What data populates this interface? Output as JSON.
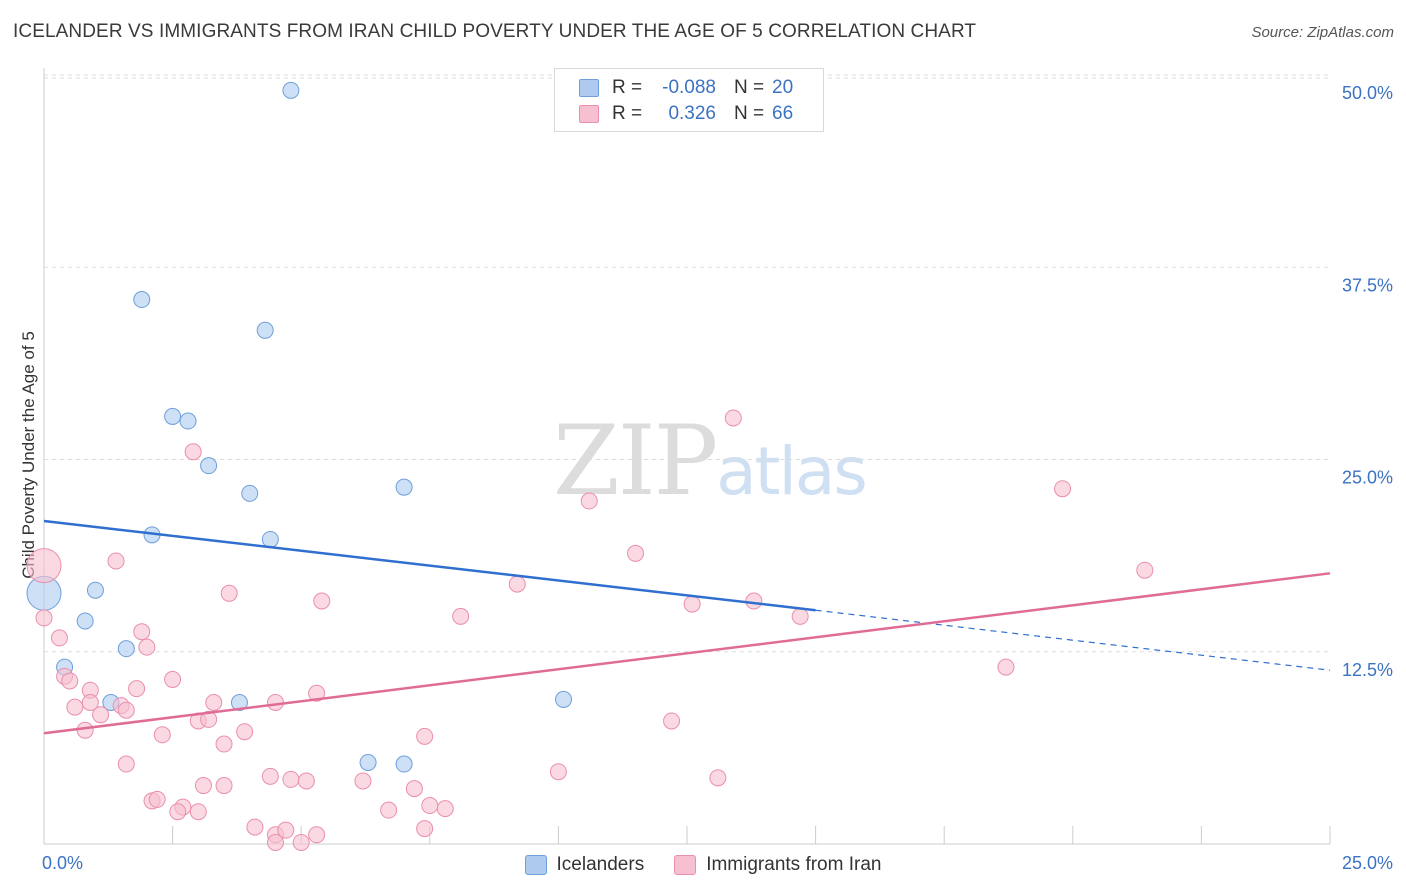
{
  "title": "ICELANDER VS IMMIGRANTS FROM IRAN CHILD POVERTY UNDER THE AGE OF 5 CORRELATION CHART",
  "source": "Source: ZipAtlas.com",
  "watermark": {
    "zip": "ZIP",
    "atlas": "atlas"
  },
  "colors": {
    "blue_fill": "#aecbef",
    "blue_stroke": "#6e9fdb",
    "blue_line": "#2f6fcf",
    "pink_fill": "#f6c0d1",
    "pink_stroke": "#ea8fac",
    "pink_line": "#e06c96",
    "tick_label": "#3b73c2",
    "grid": "#dddddd"
  },
  "legend": {
    "rows": [
      {
        "r_label": "R =",
        "r_value": "-0.088",
        "n_label": "N =",
        "n_value": "20"
      },
      {
        "r_label": "R =",
        "r_value": "0.326",
        "n_label": "N =",
        "n_value": "66"
      }
    ]
  },
  "bottom_legend": [
    "Icelanders",
    "Immigrants from Iran"
  ],
  "chart_data": {
    "type": "scatter",
    "xlabel": "",
    "ylabel": "Child Poverty Under the Age of 5",
    "xlim": [
      0,
      25
    ],
    "ylim": [
      0,
      50
    ],
    "x_tick_labels": [
      "0.0%",
      "25.0%"
    ],
    "y_tick_labels": [
      "12.5%",
      "25.0%",
      "37.5%",
      "50.0%"
    ],
    "y_ticks": [
      12.5,
      25.0,
      37.5,
      50.0
    ],
    "grid": true,
    "legend_position": "top-center",
    "series": [
      {
        "name": "Icelanders",
        "color": "blue",
        "trend": {
          "x0": 0,
          "y0": 21.0,
          "x1": 15.0,
          "y1": 15.2,
          "dashed_to_x": 25,
          "dashed_to_y": 11.3
        },
        "points": [
          [
            4.8,
            49.0
          ],
          [
            1.9,
            35.4
          ],
          [
            4.3,
            33.4
          ],
          [
            2.5,
            27.8
          ],
          [
            2.8,
            27.5
          ],
          [
            3.2,
            24.6
          ],
          [
            4.0,
            22.8
          ],
          [
            7.0,
            23.2
          ],
          [
            2.1,
            20.1
          ],
          [
            4.4,
            19.8
          ],
          [
            0.0,
            16.3,
            "large"
          ],
          [
            1.0,
            16.5
          ],
          [
            0.8,
            14.5
          ],
          [
            1.6,
            12.7
          ],
          [
            0.4,
            11.5
          ],
          [
            1.3,
            9.2
          ],
          [
            3.8,
            9.2
          ],
          [
            10.1,
            9.4
          ],
          [
            6.3,
            5.3
          ],
          [
            7.0,
            5.2
          ]
        ]
      },
      {
        "name": "Immigrants from Iran",
        "color": "pink",
        "trend": {
          "x0": 0,
          "y0": 7.2,
          "x1": 25,
          "y1": 17.6
        },
        "points": [
          [
            13.4,
            27.7
          ],
          [
            2.9,
            25.5
          ],
          [
            10.6,
            22.3
          ],
          [
            19.8,
            23.1
          ],
          [
            0.0,
            18.1,
            "large"
          ],
          [
            1.4,
            18.4
          ],
          [
            11.5,
            18.9
          ],
          [
            21.4,
            17.8
          ],
          [
            9.2,
            16.9
          ],
          [
            3.6,
            16.3
          ],
          [
            5.4,
            15.8
          ],
          [
            12.6,
            15.6
          ],
          [
            13.8,
            15.8
          ],
          [
            8.1,
            14.8
          ],
          [
            14.7,
            14.8
          ],
          [
            0.0,
            14.7
          ],
          [
            0.3,
            13.4
          ],
          [
            1.9,
            13.8
          ],
          [
            2.0,
            12.8
          ],
          [
            18.7,
            11.5
          ],
          [
            0.4,
            10.9
          ],
          [
            0.5,
            10.6
          ],
          [
            2.5,
            10.7
          ],
          [
            0.9,
            10.0
          ],
          [
            1.8,
            10.1
          ],
          [
            5.3,
            9.8
          ],
          [
            0.9,
            9.2
          ],
          [
            1.5,
            9.0
          ],
          [
            3.3,
            9.2
          ],
          [
            4.5,
            9.2
          ],
          [
            0.6,
            8.9
          ],
          [
            1.1,
            8.4
          ],
          [
            1.6,
            8.7
          ],
          [
            3.0,
            8.0
          ],
          [
            3.2,
            8.1
          ],
          [
            12.2,
            8.0
          ],
          [
            0.8,
            7.4
          ],
          [
            2.3,
            7.1
          ],
          [
            3.9,
            7.3
          ],
          [
            7.4,
            7.0
          ],
          [
            3.5,
            6.5
          ],
          [
            1.6,
            5.2
          ],
          [
            10.0,
            4.7
          ],
          [
            13.1,
            4.3
          ],
          [
            4.4,
            4.4
          ],
          [
            4.8,
            4.2
          ],
          [
            5.1,
            4.1
          ],
          [
            6.2,
            4.1
          ],
          [
            3.1,
            3.8
          ],
          [
            3.5,
            3.8
          ],
          [
            7.2,
            3.6
          ],
          [
            2.1,
            2.8
          ],
          [
            2.2,
            2.9
          ],
          [
            2.7,
            2.4
          ],
          [
            3.0,
            2.1
          ],
          [
            7.8,
            2.3
          ],
          [
            2.6,
            2.1
          ],
          [
            6.7,
            2.2
          ],
          [
            7.5,
            2.5
          ],
          [
            4.1,
            1.1
          ],
          [
            4.5,
            0.6
          ],
          [
            4.7,
            0.9
          ],
          [
            5.3,
            0.6
          ],
          [
            7.4,
            1.0
          ],
          [
            4.5,
            0.1
          ],
          [
            5.0,
            0.1
          ]
        ]
      }
    ]
  }
}
